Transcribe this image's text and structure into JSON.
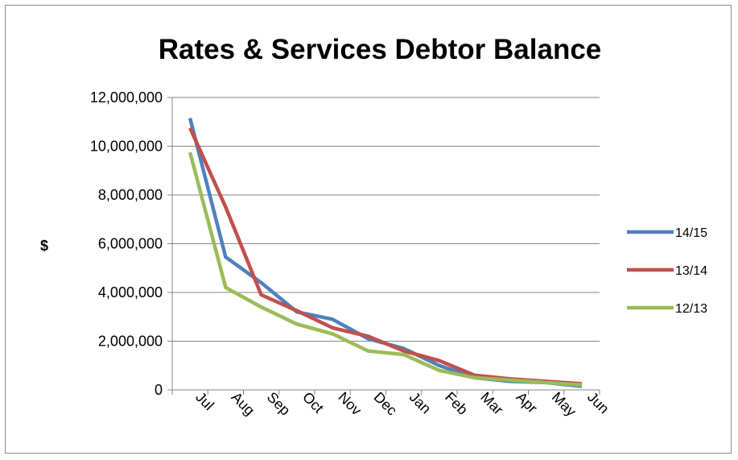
{
  "chart_data": {
    "type": "line",
    "title": "Rates & Services Debtor Balance",
    "xlabel": "",
    "ylabel": "$",
    "ylim": [
      0,
      12000000
    ],
    "yticks": [
      0,
      2000000,
      4000000,
      6000000,
      8000000,
      10000000,
      12000000
    ],
    "ytick_labels": [
      "0",
      "2,000,000",
      "4,000,000",
      "6,000,000",
      "8,000,000",
      "10,000,000",
      "12,000,000"
    ],
    "categories": [
      "Jul",
      "Aug",
      "Sep",
      "Oct",
      "Nov",
      "Dec",
      "Jan",
      "Feb",
      "Mar",
      "Apr",
      "May",
      "Jun"
    ],
    "grid": "horizontal",
    "legend_position": "right",
    "series": [
      {
        "name": "14/15",
        "color": "#4f81bd",
        "values": [
          11150000,
          5450000,
          4400000,
          3200000,
          2900000,
          2100000,
          1700000,
          1000000,
          500000,
          350000,
          300000,
          150000
        ]
      },
      {
        "name": "13/14",
        "color": "#c0504d",
        "values": [
          10750000,
          7500000,
          3900000,
          3250000,
          2550000,
          2200000,
          1600000,
          1200000,
          600000,
          450000,
          350000,
          250000
        ]
      },
      {
        "name": "12/13",
        "color": "#9bbb59",
        "values": [
          9750000,
          4200000,
          3400000,
          2700000,
          2300000,
          1600000,
          1450000,
          800000,
          500000,
          400000,
          300000,
          200000
        ]
      }
    ]
  }
}
